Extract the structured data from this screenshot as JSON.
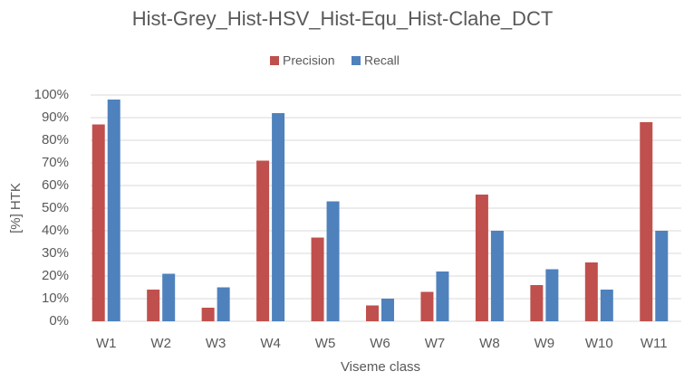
{
  "chart_data": {
    "type": "bar",
    "title": "Hist-Grey_Hist-HSV_Hist-Equ_Hist-Clahe_DCT",
    "x_label": "Viseme class",
    "y_label": "[%] HTK",
    "categories": [
      "W1",
      "W2",
      "W3",
      "W4",
      "W5",
      "W6",
      "W7",
      "W8",
      "W9",
      "W10",
      "W11"
    ],
    "series": [
      {
        "name": "Precision",
        "color": "#c0504d",
        "values": [
          87,
          14,
          6,
          71,
          37,
          7,
          13,
          56,
          16,
          26,
          88
        ]
      },
      {
        "name": "Recall",
        "color": "#4f81bd",
        "values": [
          98,
          21,
          15,
          92,
          53,
          10,
          22,
          40,
          23,
          14,
          40
        ]
      }
    ],
    "ylim": [
      0,
      100
    ],
    "yticks": [
      {
        "value": 0,
        "label": "0%"
      },
      {
        "value": 10,
        "label": "10%"
      },
      {
        "value": 20,
        "label": "20%"
      },
      {
        "value": 30,
        "label": "30%"
      },
      {
        "value": 40,
        "label": "40%"
      },
      {
        "value": 50,
        "label": "50%"
      },
      {
        "value": 60,
        "label": "60%"
      },
      {
        "value": 70,
        "label": "70%"
      },
      {
        "value": 80,
        "label": "80%"
      },
      {
        "value": 90,
        "label": "90%"
      },
      {
        "value": 100,
        "label": "100%"
      }
    ],
    "grid": true,
    "legend": "top"
  }
}
